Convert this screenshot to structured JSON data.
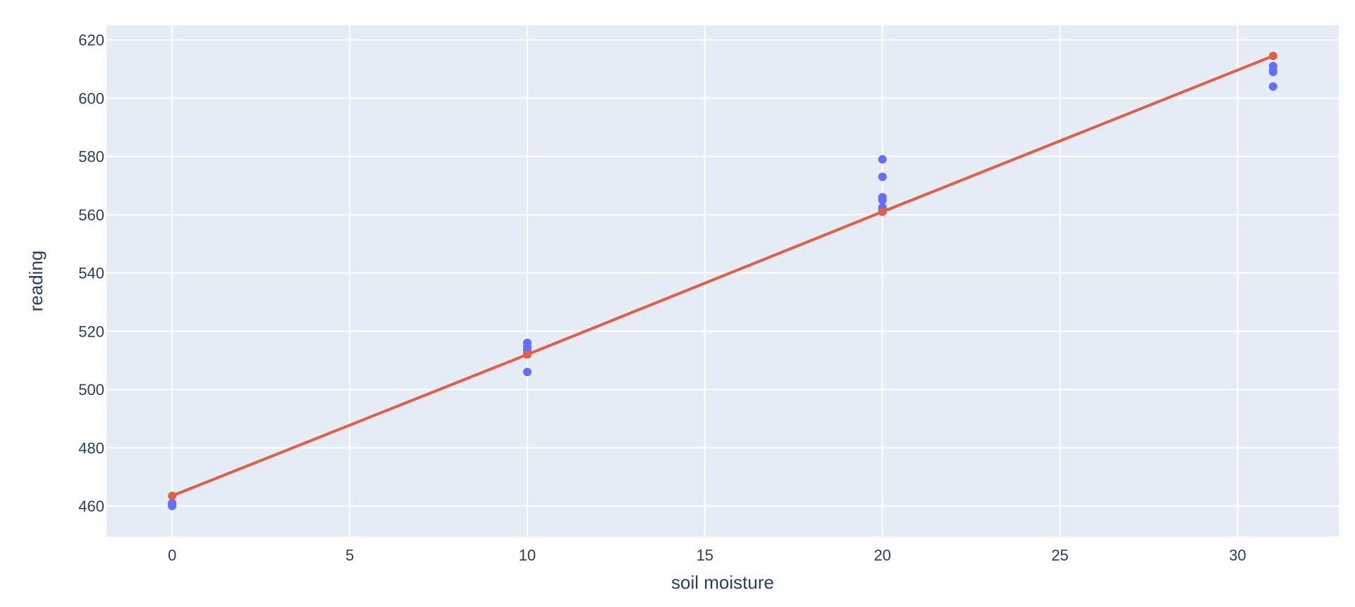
{
  "colors": {
    "background": "#ffffff",
    "plot_background": "#e5ecf6",
    "grid": "#ffffff",
    "text": "#2a3f5f",
    "observed_points": "#636efa",
    "fit_line": "#e05f45"
  },
  "chart_data": {
    "type": "scatter",
    "title": "",
    "xlabel": "soil moisture",
    "ylabel": "reading",
    "xlim": [
      -1.85,
      32.85
    ],
    "ylim": [
      449.5,
      625
    ],
    "x_ticks": [
      0,
      5,
      10,
      15,
      20,
      25,
      30
    ],
    "y_ticks": [
      460,
      480,
      500,
      520,
      540,
      560,
      580,
      600,
      620
    ],
    "grid": true,
    "legend": "none",
    "series": [
      {
        "mode": "markers",
        "color": "#636efa",
        "x": [
          0,
          0,
          0,
          10,
          10,
          10,
          10,
          10,
          20,
          20,
          20,
          20,
          20,
          20,
          31,
          31,
          31,
          31
        ],
        "y": [
          460.0,
          460.5,
          461.0,
          506.0,
          512.5,
          513.5,
          514.5,
          516.0,
          562.0,
          565.0,
          566.0,
          573.0,
          579.0,
          562.5,
          604.0,
          609.0,
          609.5,
          611.0
        ]
      },
      {
        "mode": "lines+markers",
        "color": "#e05f45",
        "x": [
          0,
          10,
          20,
          31
        ],
        "y": [
          463.5,
          512.0,
          561.0,
          614.5
        ]
      }
    ]
  }
}
